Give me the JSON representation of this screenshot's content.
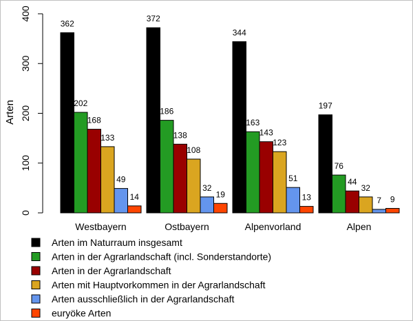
{
  "chart_data": {
    "type": "bar",
    "ylabel": "Arten",
    "ylim": [
      0,
      400
    ],
    "yticks": [
      0,
      100,
      200,
      300,
      400
    ],
    "categories": [
      "Westbayern",
      "Ostbayern",
      "Alpenvorland",
      "Alpen"
    ],
    "legend_position": "bottom",
    "grid": false,
    "series": [
      {
        "name": "Arten im Naturraum insgesamt",
        "color": "#000000",
        "values": [
          362,
          372,
          344,
          197
        ]
      },
      {
        "name": "Arten in der Agrarlandschaft (incl. Sonderstandorte)",
        "color": "#239b23",
        "values": [
          202,
          186,
          163,
          76
        ]
      },
      {
        "name": "Arten in der Agrarlandschaft",
        "color": "#990000",
        "values": [
          168,
          138,
          143,
          44
        ]
      },
      {
        "name": "Arten mit Hauptvorkommen in der Agrarlandschaft",
        "color": "#daa520",
        "values": [
          133,
          108,
          123,
          32
        ]
      },
      {
        "name": "Arten ausschließlich in der Agrarlandschaft",
        "color": "#6495ed",
        "values": [
          49,
          32,
          51,
          7
        ]
      },
      {
        "name": "euryöke Arten",
        "color": "#ff4500",
        "values": [
          14,
          19,
          13,
          9
        ]
      }
    ]
  }
}
